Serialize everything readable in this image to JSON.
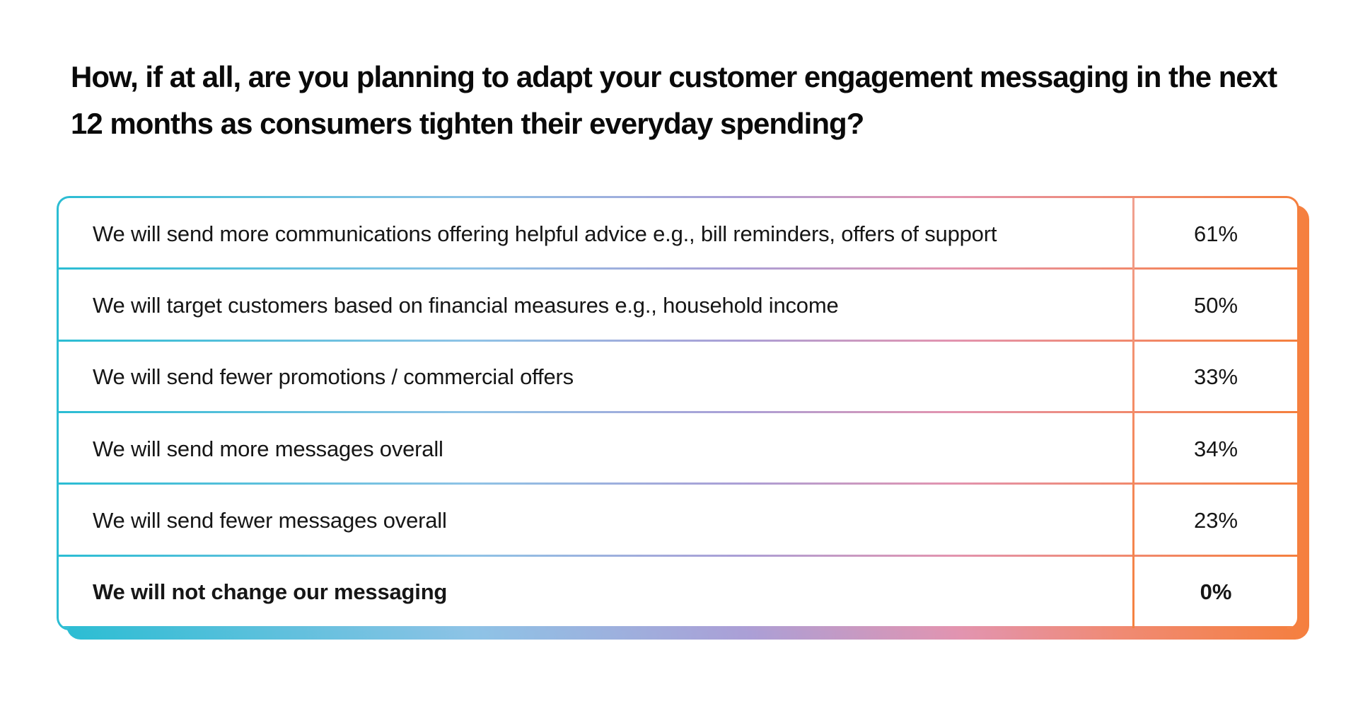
{
  "question": {
    "title": "How, if at all, are you planning to adapt your customer engagement messaging in the next 12 months as consumers tighten their everyday spending?"
  },
  "table": {
    "rows": [
      {
        "label": "We will send more communications offering helpful advice e.g., bill reminders, offers of support",
        "value": "61%",
        "emphasis": false
      },
      {
        "label": "We will target customers based on financial measures e.g., household income",
        "value": "50%",
        "emphasis": false
      },
      {
        "label": "We will send fewer promotions / commercial offers",
        "value": "33%",
        "emphasis": false
      },
      {
        "label": "We will send more messages overall",
        "value": "34%",
        "emphasis": false
      },
      {
        "label": "We will send fewer messages overall",
        "value": "23%",
        "emphasis": false
      },
      {
        "label": "We will not change our messaging",
        "value": "0%",
        "emphasis": true
      }
    ]
  },
  "colors": {
    "gradient_teal": "#2bbdd3",
    "gradient_blue": "#8ec3e6",
    "gradient_purple": "#ab9fd6",
    "gradient_pink": "#e294b0",
    "gradient_salmon": "#f08a73",
    "gradient_orange": "#f57f3e",
    "text": "#161616",
    "title_text": "#0a0a0a",
    "background": "#ffffff"
  },
  "chart_data": {
    "type": "table",
    "title": "How, if at all, are you planning to adapt your customer engagement messaging in the next 12 months as consumers tighten their everyday spending?",
    "categories": [
      "We will send more communications offering helpful advice e.g., bill reminders, offers of support",
      "We will target customers based on financial measures e.g., household income",
      "We will send fewer promotions / commercial offers",
      "We will send more messages overall",
      "We will send fewer messages overall",
      "We will not change our messaging"
    ],
    "values": [
      61,
      50,
      33,
      34,
      23,
      0
    ],
    "value_unit": "%",
    "layout": "two-column table, answer text left, percentage right, gradient teal-to-orange frame with offset gradient drop shadow"
  }
}
